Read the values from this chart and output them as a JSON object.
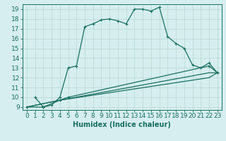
{
  "xlabel": "Humidex (Indice chaleur)",
  "xlim": [
    -0.5,
    23.5
  ],
  "ylim": [
    8.7,
    19.5
  ],
  "xticks": [
    0,
    1,
    2,
    3,
    4,
    5,
    6,
    7,
    8,
    9,
    10,
    11,
    12,
    13,
    14,
    15,
    16,
    17,
    18,
    19,
    20,
    21,
    22,
    23
  ],
  "yticks": [
    9,
    10,
    11,
    12,
    13,
    14,
    15,
    16,
    17,
    18,
    19
  ],
  "background_color": "#d6eef0",
  "grid_color": "#b8d8d0",
  "line_color": "#1a7060",
  "line1_x": [
    1,
    2,
    3,
    4,
    5,
    6,
    7,
    8,
    9,
    10,
    11,
    12,
    13,
    14,
    15,
    16,
    17,
    18,
    19,
    20,
    21,
    22,
    23
  ],
  "line1_y": [
    10.0,
    9.0,
    9.2,
    10.0,
    13.0,
    13.2,
    17.2,
    17.5,
    17.9,
    18.0,
    17.8,
    17.5,
    19.0,
    19.0,
    18.8,
    19.2,
    16.2,
    15.5,
    15.0,
    13.3,
    13.0,
    13.5,
    12.5
  ],
  "line2_x": [
    0,
    2,
    4,
    5,
    22,
    23
  ],
  "line2_y": [
    9.0,
    9.0,
    9.7,
    10.0,
    13.2,
    12.5
  ],
  "line3_x": [
    0,
    4,
    22,
    23
  ],
  "line3_y": [
    9.0,
    9.7,
    12.5,
    12.5
  ],
  "line4_x": [
    0,
    4,
    22,
    23
  ],
  "line4_y": [
    9.0,
    9.7,
    12.0,
    12.5
  ],
  "font_size": 6.5
}
